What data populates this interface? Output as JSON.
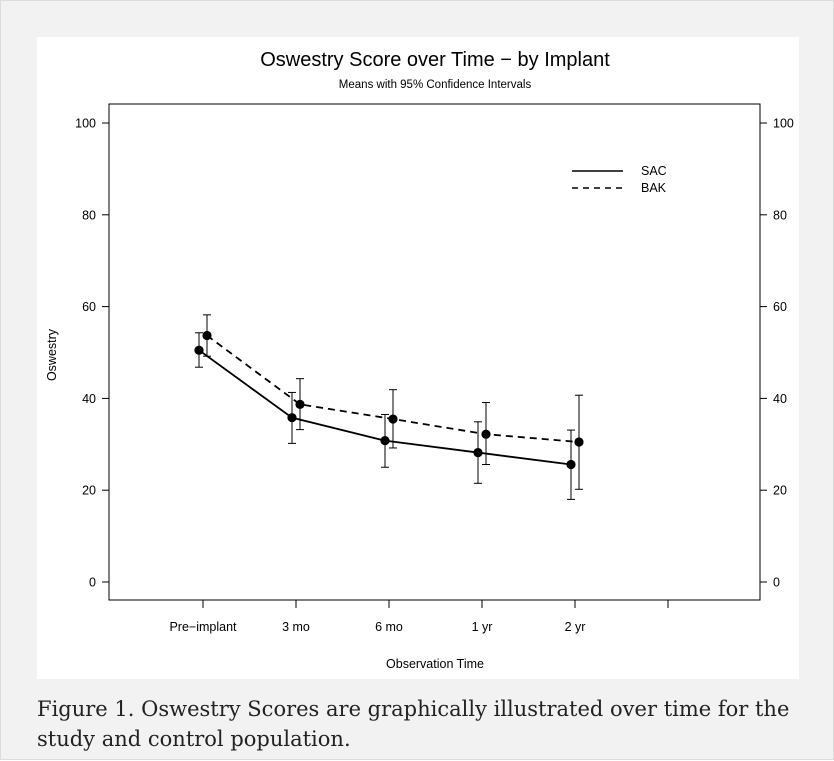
{
  "caption": "Figure 1. Oswestry Scores are graphically illustrated over time for the study and control population.",
  "chart_data": {
    "type": "line",
    "title": "Oswestry Score over Time − by Implant",
    "subtitle": "Means with 95% Confidence Intervals",
    "xlabel": "Observation Time",
    "ylabel": "Oswestry",
    "categories": [
      "Pre−implant",
      "3 mo",
      "6 mo",
      "1 yr",
      "2 yr"
    ],
    "extra_x_ticks": 1,
    "ylim": [
      0,
      100
    ],
    "yticks": [
      0,
      20,
      40,
      60,
      80,
      100
    ],
    "right_axis": true,
    "grid": false,
    "legend_position": "top-right",
    "series": [
      {
        "name": "SAC",
        "style": "solid",
        "color": "#000000",
        "values": [
          50.5,
          35.8,
          30.8,
          28.2,
          25.6
        ],
        "ci_low": [
          46.8,
          30.2,
          25.0,
          21.5,
          18.0
        ],
        "ci_high": [
          54.3,
          41.3,
          36.5,
          34.9,
          33.1
        ]
      },
      {
        "name": "BAK",
        "style": "dashed",
        "color": "#000000",
        "values": [
          53.7,
          38.7,
          35.5,
          32.2,
          30.5
        ],
        "ci_low": [
          49.2,
          33.2,
          29.2,
          25.6,
          20.2
        ],
        "ci_high": [
          58.2,
          44.3,
          41.9,
          39.1,
          40.7
        ]
      }
    ]
  }
}
